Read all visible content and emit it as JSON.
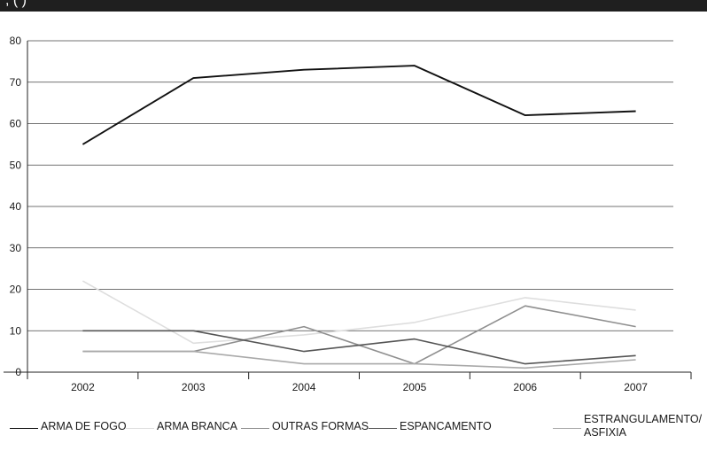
{
  "header": {
    "title_fragment": ", (       )"
  },
  "chart_data": {
    "type": "line",
    "title": "",
    "xlabel": "",
    "ylabel": "",
    "ylim": [
      0,
      80
    ],
    "yticks": [
      0,
      10,
      20,
      30,
      40,
      50,
      60,
      70,
      80
    ],
    "grid": true,
    "legend_position": "bottom",
    "x": [
      "2002",
      "2003",
      "2004",
      "2005",
      "2006",
      "2007"
    ],
    "series": [
      {
        "name": "ARMA DE FOGO",
        "color": "#111111",
        "values": [
          55,
          71,
          73,
          74,
          62,
          63
        ]
      },
      {
        "name": "ARMA  BRANCA",
        "color": "#dedede",
        "values": [
          22,
          7,
          9,
          12,
          18,
          15
        ]
      },
      {
        "name": "OUTRAS FORMAS",
        "color": "#8f8f8f",
        "values": [
          5,
          5,
          11,
          2,
          16,
          11
        ]
      },
      {
        "name": "ESPANCAMENTO",
        "color": "#555555",
        "values": [
          10,
          10,
          5,
          8,
          2,
          4
        ]
      },
      {
        "name": "ESTRANGULAMENTO/\nASFIXIA",
        "color": "#a9a9a9",
        "values": [
          5,
          5,
          2,
          2,
          1,
          3
        ]
      }
    ]
  }
}
